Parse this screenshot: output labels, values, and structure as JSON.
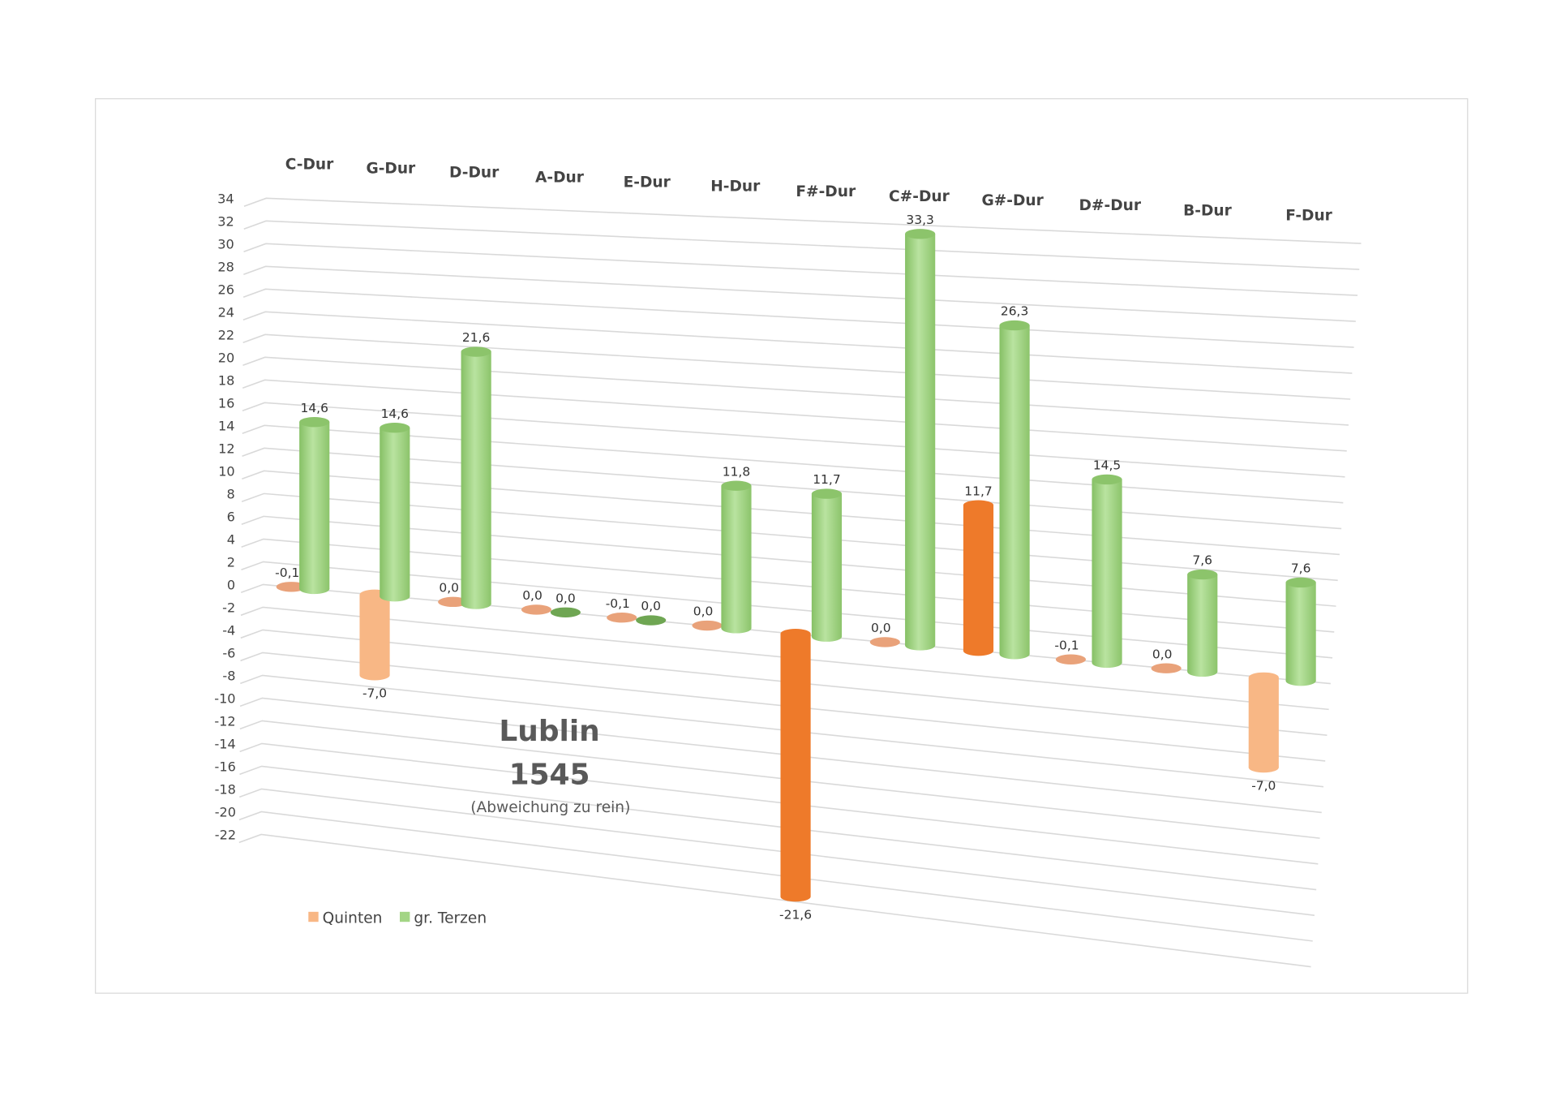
{
  "chart_data": {
    "type": "bar",
    "subtype": "3d-cylinder",
    "title": "Lublin",
    "title_line2": "1545",
    "subtitle": "(Abweichung zu rein)",
    "categories": [
      "C-Dur",
      "G-Dur",
      "D-Dur",
      "A-Dur",
      "E-Dur",
      "H-Dur",
      "F#-Dur",
      "C#-Dur",
      "G#-Dur",
      "D#-Dur",
      "B-Dur",
      "F-Dur"
    ],
    "series": [
      {
        "name": "Quinten",
        "color": "#F8B785",
        "values": [
          -0.1,
          -7.0,
          0.0,
          0.0,
          -0.1,
          0.0,
          -21.6,
          0.0,
          11.7,
          -0.1,
          0.0,
          -7.0
        ],
        "labels": [
          "-0,1",
          "-7,0",
          "0,0",
          "0,0",
          "-0,1",
          "0,0",
          "-21,6",
          "0,0",
          "11,7",
          "-0,1",
          "0,0",
          "-7,0"
        ],
        "point_colors": [
          "#E9A27A",
          "#F8B785",
          "#E9A27A",
          "#E9A27A",
          "#E9A27A",
          "#E9A27A",
          "#EE7A2A",
          "#E9A27A",
          "#EE7A2A",
          "#E9A27A",
          "#E9A27A",
          "#F8B785"
        ]
      },
      {
        "name": "gr. Terzen",
        "color": "#A3D585",
        "values": [
          14.6,
          14.6,
          21.6,
          0.0,
          0.0,
          11.8,
          11.7,
          33.3,
          26.3,
          14.5,
          7.6,
          7.6
        ],
        "labels": [
          "14,6",
          "14,6",
          "21,6",
          "0,0",
          "0,0",
          "11,8",
          "11,7",
          "33,3",
          "26,3",
          "14,5",
          "7,6",
          "7,6"
        ]
      }
    ],
    "yticks": [
      "34",
      "32",
      "30",
      "28",
      "26",
      "24",
      "22",
      "20",
      "18",
      "16",
      "14",
      "12",
      "10",
      "8",
      "6",
      "4",
      "2",
      "0",
      "-2",
      "-4",
      "-6",
      "-8",
      "-10",
      "-12",
      "-14",
      "-16",
      "-18",
      "-20",
      "-22"
    ],
    "ylim": [
      -22,
      34
    ],
    "grid": true,
    "legend": [
      "Quinten",
      "gr. Terzen"
    ],
    "legend_position": "bottom-left"
  }
}
